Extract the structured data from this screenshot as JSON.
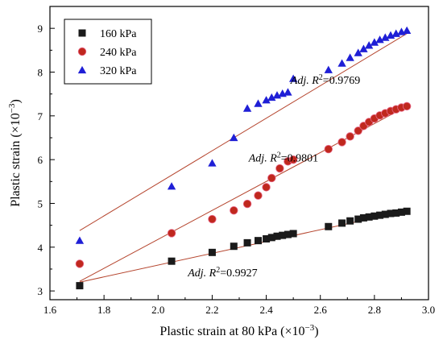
{
  "chart_data": {
    "type": "scatter",
    "xlabel": "Plastic strain at 80 kPa (×10",
    "xlabel_sup": "−3",
    "xlabel_end": ")",
    "ylabel": "Plastic strain (×10",
    "ylabel_sup": "−3",
    "ylabel_end": ")",
    "xlim": [
      1.6,
      3.0
    ],
    "ylim": [
      2.8,
      9.5
    ],
    "xticks": [
      "1.6",
      "1.8",
      "2.0",
      "2.2",
      "2.4",
      "2.6",
      "2.8",
      "3.0"
    ],
    "yticks": [
      "3",
      "4",
      "5",
      "6",
      "7",
      "8",
      "9"
    ],
    "xtick_values": [
      1.6,
      1.8,
      2.0,
      2.2,
      2.4,
      2.6,
      2.8,
      3.0
    ],
    "ytick_values": [
      3,
      4,
      5,
      6,
      7,
      8,
      9
    ],
    "legend_position": "top-left",
    "series": [
      {
        "name": "160 kPa",
        "marker": "square",
        "color": "#1a1a1a",
        "line_color": "#b5452e",
        "fit": {
          "x": [
            1.71,
            2.92
          ],
          "y": [
            3.2,
            4.83
          ]
        },
        "fit_label_pre": "Adj. ",
        "fit_label_r": "R",
        "fit_label_sup": "2",
        "fit_label_post": "=0.9927",
        "x": [
          1.71,
          2.05,
          2.2,
          2.28,
          2.33,
          2.37,
          2.4,
          2.42,
          2.44,
          2.46,
          2.48,
          2.5,
          2.63,
          2.68,
          2.71,
          2.74,
          2.76,
          2.78,
          2.8,
          2.82,
          2.84,
          2.86,
          2.88,
          2.9,
          2.92
        ],
        "y": [
          3.12,
          3.68,
          3.88,
          4.02,
          4.1,
          4.15,
          4.19,
          4.22,
          4.25,
          4.27,
          4.29,
          4.31,
          4.47,
          4.55,
          4.6,
          4.64,
          4.67,
          4.69,
          4.71,
          4.73,
          4.75,
          4.77,
          4.78,
          4.8,
          4.82
        ]
      },
      {
        "name": "240 kPa",
        "marker": "circle",
        "color": "#c0281e",
        "line_color": "#b5452e",
        "fit": {
          "x": [
            1.71,
            2.92
          ],
          "y": [
            3.22,
            7.22
          ]
        },
        "fit_label_pre": "Adj. ",
        "fit_label_r": "R",
        "fit_label_sup": "2",
        "fit_label_post": "=0.9801",
        "x": [
          1.71,
          2.05,
          2.2,
          2.28,
          2.33,
          2.37,
          2.4,
          2.42,
          2.45,
          2.48,
          2.5,
          2.63,
          2.68,
          2.71,
          2.74,
          2.76,
          2.78,
          2.8,
          2.82,
          2.84,
          2.86,
          2.88,
          2.9,
          2.92
        ],
        "y": [
          3.62,
          4.32,
          4.64,
          4.84,
          4.99,
          5.18,
          5.37,
          5.58,
          5.8,
          5.96,
          6.0,
          6.24,
          6.4,
          6.53,
          6.66,
          6.77,
          6.86,
          6.94,
          7.01,
          7.06,
          7.11,
          7.15,
          7.19,
          7.22
        ]
      },
      {
        "name": "320 kPa",
        "marker": "triangle",
        "color": "#1f1fd6",
        "line_color": "#b5452e",
        "fit": {
          "x": [
            1.71,
            2.92
          ],
          "y": [
            4.38,
            8.88
          ]
        },
        "fit_label_pre": "Adj. ",
        "fit_label_r": "R",
        "fit_label_sup": "2",
        "fit_label_post": "=0.9769",
        "x": [
          1.71,
          2.05,
          2.2,
          2.28,
          2.33,
          2.37,
          2.4,
          2.42,
          2.44,
          2.46,
          2.48,
          2.5,
          2.63,
          2.68,
          2.71,
          2.74,
          2.76,
          2.78,
          2.8,
          2.82,
          2.84,
          2.86,
          2.88,
          2.9,
          2.92
        ],
        "y": [
          4.15,
          5.39,
          5.92,
          6.5,
          7.17,
          7.28,
          7.36,
          7.42,
          7.47,
          7.51,
          7.54,
          7.85,
          8.05,
          8.2,
          8.33,
          8.44,
          8.53,
          8.61,
          8.68,
          8.74,
          8.79,
          8.84,
          8.88,
          8.92,
          8.95
        ]
      }
    ]
  }
}
